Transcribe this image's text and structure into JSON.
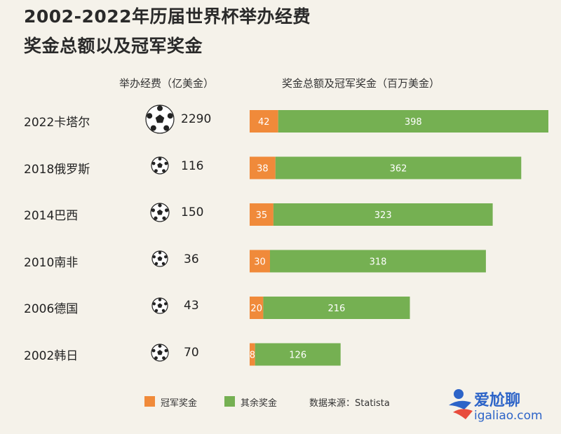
{
  "title_line1": "2002-2022年历届世界杯举办经费",
  "title_line2": "奖金总额以及冠军奖金",
  "header_cost": "举办经费（亿美金）",
  "header_prize": "奖金总额及冠军奖金（百万美金）",
  "legend": {
    "champion": "冠军奖金",
    "rest": "其余奖金",
    "source": "数据来源：Statista"
  },
  "watermark": {
    "line1": "爱尬聊",
    "line2": "igaliao.com"
  },
  "colors": {
    "champion": "#f08a3a",
    "rest": "#75b052",
    "background": "#f5f2ea"
  },
  "chart_data": {
    "type": "bar",
    "orientation": "horizontal",
    "stacked": true,
    "categories": [
      "2022卡塔尔",
      "2018俄罗斯",
      "2014巴西",
      "2010南非",
      "2006德国",
      "2002韩日"
    ],
    "host_cost": [
      2290,
      116,
      150,
      36,
      43,
      70
    ],
    "series": [
      {
        "name": "冠军奖金",
        "values": [
          42,
          38,
          35,
          30,
          20,
          8
        ]
      },
      {
        "name": "其余奖金",
        "values": [
          398,
          362,
          323,
          318,
          216,
          126
        ]
      }
    ],
    "xlim": [
      0,
      440
    ],
    "legend_position": "bottom",
    "grid": false
  }
}
